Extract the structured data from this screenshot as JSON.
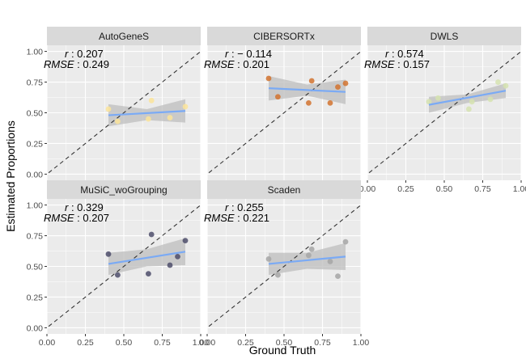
{
  "figure": {
    "xlabel": "Ground Truth",
    "ylabel": "Estimated Proportions"
  },
  "colors": {
    "panel_bg": "#ebebeb",
    "strip_bg": "#d9d9d9",
    "grid": "#ffffff",
    "fit_line": "#7aaaf5",
    "ribbon": "#bdbdbd",
    "identity_line": "#333333",
    "text": "#1a1a1a",
    "tick_text": "#4d4d4d"
  },
  "chart_data": {
    "type": "scatter",
    "xlim": [
      0,
      1
    ],
    "ylim": [
      -0.05,
      1.05
    ],
    "x_ticks": [
      0.0,
      0.25,
      0.5,
      0.75,
      1.0
    ],
    "x_tick_labels": [
      "0.00",
      "0.25",
      "0.50",
      "0.75",
      "1.00"
    ],
    "y_ticks": [
      0.0,
      0.25,
      0.5,
      0.75,
      1.0
    ],
    "y_tick_labels": [
      "0.00",
      "0.25",
      "0.50",
      "0.75",
      "1.00"
    ],
    "grid": true,
    "identity_line": true,
    "panels": [
      {
        "name": "AutoGeneS",
        "r_text": "0.207",
        "rmse_text": "0.249",
        "color": "#fce49a",
        "points": [
          [
            0.4,
            0.53
          ],
          [
            0.46,
            0.43
          ],
          [
            0.66,
            0.45
          ],
          [
            0.68,
            0.6
          ],
          [
            0.8,
            0.46
          ],
          [
            0.9,
            0.55
          ]
        ],
        "fit": {
          "x0": 0.4,
          "y0": 0.48,
          "x1": 0.9,
          "y1": 0.515
        },
        "ribbon": {
          "lower": [
            0.39,
            0.44,
            0.42
          ],
          "upper": [
            0.57,
            0.53,
            0.61
          ]
        }
      },
      {
        "name": "CIBERSORTx",
        "r_text": "− 0.114",
        "rmse_text": "0.201",
        "color": "#d2732f",
        "points": [
          [
            0.4,
            0.78
          ],
          [
            0.46,
            0.63
          ],
          [
            0.66,
            0.58
          ],
          [
            0.68,
            0.76
          ],
          [
            0.8,
            0.58
          ],
          [
            0.85,
            0.71
          ],
          [
            0.9,
            0.74
          ]
        ],
        "fit": {
          "x0": 0.4,
          "y0": 0.7,
          "x1": 0.9,
          "y1": 0.67
        },
        "ribbon": {
          "lower": [
            0.6,
            0.64,
            0.57
          ],
          "upper": [
            0.8,
            0.73,
            0.77
          ]
        }
      },
      {
        "name": "DWLS",
        "r_text": "0.574",
        "rmse_text": "0.157",
        "color": "#d6e3b0",
        "points": [
          [
            0.4,
            0.59
          ],
          [
            0.46,
            0.62
          ],
          [
            0.66,
            0.53
          ],
          [
            0.68,
            0.59
          ],
          [
            0.8,
            0.61
          ],
          [
            0.85,
            0.75
          ],
          [
            0.9,
            0.72
          ]
        ],
        "fit": {
          "x0": 0.4,
          "y0": 0.565,
          "x1": 0.9,
          "y1": 0.68
        },
        "ribbon": {
          "lower": [
            0.5,
            0.58,
            0.62
          ],
          "upper": [
            0.63,
            0.65,
            0.74
          ]
        }
      },
      {
        "name": "MuSiC_woGrouping",
        "r_text": "0.329",
        "rmse_text": "0.207",
        "color": "#4d4d6b",
        "points": [
          [
            0.4,
            0.6
          ],
          [
            0.46,
            0.43
          ],
          [
            0.66,
            0.44
          ],
          [
            0.68,
            0.76
          ],
          [
            0.8,
            0.51
          ],
          [
            0.85,
            0.58
          ],
          [
            0.9,
            0.71
          ]
        ],
        "fit": {
          "x0": 0.4,
          "y0": 0.52,
          "x1": 0.9,
          "y1": 0.62
        },
        "ribbon": {
          "lower": [
            0.43,
            0.5,
            0.51
          ],
          "upper": [
            0.61,
            0.64,
            0.73
          ]
        }
      },
      {
        "name": "Scaden",
        "r_text": "0.255",
        "rmse_text": "0.221",
        "color": "#a6a6a6",
        "points": [
          [
            0.4,
            0.56
          ],
          [
            0.46,
            0.43
          ],
          [
            0.66,
            0.59
          ],
          [
            0.68,
            0.64
          ],
          [
            0.8,
            0.54
          ],
          [
            0.85,
            0.42
          ],
          [
            0.9,
            0.7
          ]
        ],
        "fit": {
          "x0": 0.4,
          "y0": 0.52,
          "x1": 0.9,
          "y1": 0.58
        },
        "ribbon": {
          "lower": [
            0.43,
            0.48,
            0.47
          ],
          "upper": [
            0.61,
            0.61,
            0.69
          ]
        }
      }
    ]
  }
}
